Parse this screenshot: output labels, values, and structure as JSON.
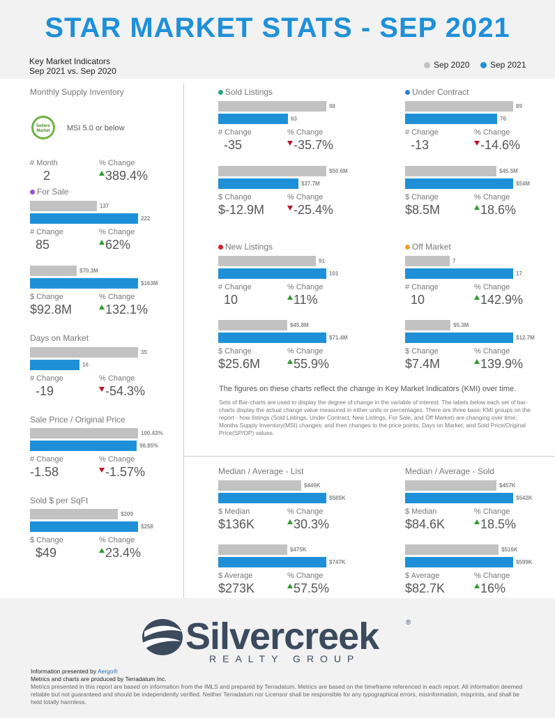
{
  "title": "STAR MARKET STATS - SEP 2021",
  "kmi": {
    "line1": "Key Market Indicators",
    "line2": "Sep 2021 vs. Sep 2020"
  },
  "legend": {
    "prev": "Sep 2020",
    "curr": "Sep 2021",
    "prev_color": "#c2c2c2",
    "curr_color": "#1e90d8"
  },
  "left": {
    "msi": {
      "title": "Monthly Supply Inventory",
      "badge": "Sellers Market",
      "text": "MSI 5.0 or below",
      "lbl1": "# Month",
      "val1": "2",
      "lbl2": "% Change",
      "val2": "389.4%"
    },
    "for_sale": {
      "title": "For Sale",
      "dot": "#9b4fd0",
      "b1": {
        "prev": "137",
        "curr": "222",
        "lbl1": "# Change",
        "val1": "85",
        "lbl2": "% Change",
        "val2": "62%"
      },
      "b2": {
        "prev": "$70.3M",
        "curr": "$163M",
        "lbl1": "$ Change",
        "val1": "$92.8M",
        "lbl2": "% Change",
        "val2": "132.1%"
      }
    },
    "dom": {
      "title": "Days on Market",
      "prev": "35",
      "curr": "16",
      "lbl1": "# Change",
      "val1": "-19",
      "lbl2": "% Change",
      "val2": "-54.3%"
    },
    "spop": {
      "title": "Sale Price / Original Price",
      "prev": "100.43%",
      "curr": "98.85%",
      "lbl1": "# Change",
      "val1": "-1.58",
      "lbl2": "% Change",
      "val2": "-1.57%"
    },
    "sqft": {
      "title": "Sold $ per SqFt",
      "prev": "$209",
      "curr": "$258",
      "lbl1": "$ Change",
      "val1": "$49",
      "lbl2": "% Change",
      "val2": "23.4%"
    }
  },
  "sold": {
    "title": "Sold Listings",
    "dot": "#2aa382",
    "b1": {
      "prev": "98",
      "curr": "63",
      "lbl1": "# Change",
      "val1": "-35",
      "lbl2": "% Change",
      "val2": "-35.7%"
    },
    "b2": {
      "prev": "$50.6M",
      "curr": "$37.7M",
      "lbl1": "$ Change",
      "val1": "$-12.9M",
      "lbl2": "% Change",
      "val2": "-25.4%"
    }
  },
  "contract": {
    "title": "Under Contract",
    "dot": "#2a7fd0",
    "b1": {
      "prev": "89",
      "curr": "76",
      "lbl1": "# Change",
      "val1": "-13",
      "lbl2": "% Change",
      "val2": "-14.6%"
    },
    "b2": {
      "prev": "$45.5M",
      "curr": "$54M",
      "lbl1": "$ Change",
      "val1": "$8.5M",
      "lbl2": "% Change",
      "val2": "18.6%"
    }
  },
  "newl": {
    "title": "New Listings",
    "dot": "#d0202a",
    "b1": {
      "prev": "91",
      "curr": "101",
      "lbl1": "# Change",
      "val1": "10",
      "lbl2": "% Change",
      "val2": "11%"
    },
    "b2": {
      "prev": "$45.8M",
      "curr": "$71.4M",
      "lbl1": "$ Change",
      "val1": "$25.6M",
      "lbl2": "% Change",
      "val2": "55.9%"
    }
  },
  "offm": {
    "title": "Off Market",
    "dot": "#f0a030",
    "b1": {
      "prev": "7",
      "curr": "17",
      "lbl1": "# Change",
      "val1": "10",
      "lbl2": "% Change",
      "val2": "142.9%"
    },
    "b2": {
      "prev": "$5.3M",
      "curr": "$12.7M",
      "lbl1": "$ Change",
      "val1": "$7.4M",
      "lbl2": "% Change",
      "val2": "139.9%"
    }
  },
  "desc": {
    "main": "The figures on these charts reflect the change in Key Market Indicators (KMI) over time.",
    "detail": "Sets of Bar-charts are used to display the degree of change in the variable of interest. The labels below each set of bar-charts display the actual change value measured in either units or percentages. There are three basic KMI groups on the report - how listings (Sold Listings, Under Contract, New Listings, For Sale, and Off Market) are changing over time; Months Supply Inventory(MSI) changes; and then changes to the price points, Days on Market, and Sold Price/Original Price(SP/OP) values."
  },
  "mlist": {
    "title": "Median / Average - List",
    "b1": {
      "prev": "$449K",
      "curr": "$585K",
      "lbl1": "$ Median",
      "val1": "$136K",
      "lbl2": "% Change",
      "val2": "30.3%"
    },
    "b2": {
      "prev": "$475K",
      "curr": "$747K",
      "lbl1": "$ Average",
      "val1": "$273K",
      "lbl2": "% Change",
      "val2": "57.5%"
    }
  },
  "msold": {
    "title": "Median / Average - Sold",
    "b1": {
      "prev": "$457K",
      "curr": "$542K",
      "lbl1": "$ Median",
      "val1": "$84.6K",
      "lbl2": "% Change",
      "val2": "18.5%"
    },
    "b2": {
      "prev": "$516K",
      "curr": "$599K",
      "lbl1": "$ Average",
      "val1": "$82.7K",
      "lbl2": "% Change",
      "val2": "16%"
    }
  },
  "logo": {
    "word": "Silvercreek",
    "reg": "®",
    "sub": "REALTY GROUP"
  },
  "footer": {
    "presented": "Information presented by",
    "brand": "Aergo®",
    "metrics": "Metrics and charts are produced by Terradatum Inc.",
    "disclaimer": "Metrics presented in this report are based on information from the IMLS and prepared by Terradatum. Metrics are based on the timeframe referenced in each report. All information deemed reliable but not guaranteed and should be independently verified. Neither Terradatum nor Licensor shall be responsible for any typographical errors, misinformation, misprints, and shall be held totally harmless."
  }
}
